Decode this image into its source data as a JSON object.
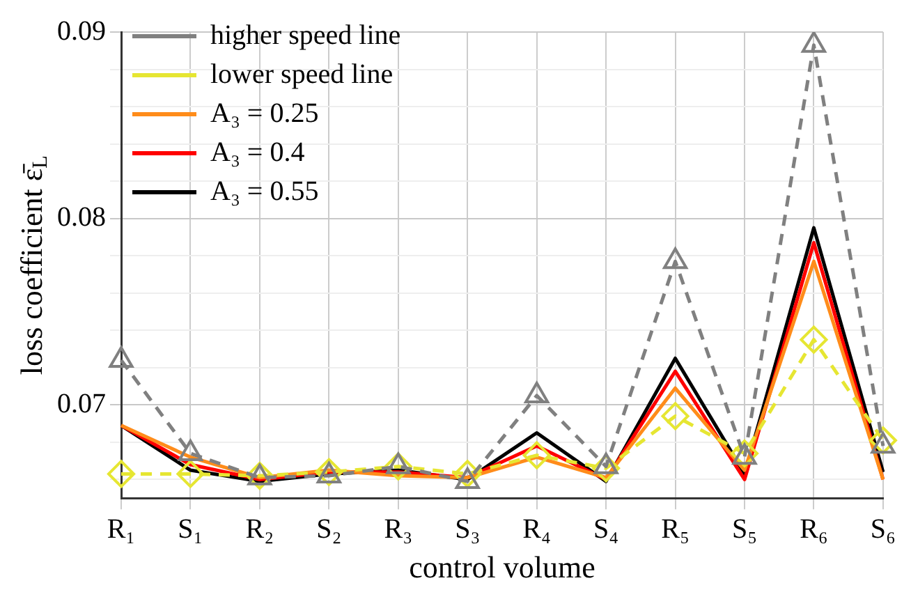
{
  "chart_data": {
    "type": "line",
    "xlabel": "control volume",
    "ylabel": "loss coefficient ε̄$_{L}$",
    "categories": [
      "R₁",
      "S₁",
      "R₂",
      "S₂",
      "R₃",
      "S₃",
      "R₄",
      "S₄",
      "R₅",
      "S₅",
      "R₆",
      "S₆"
    ],
    "ylim": [
      0.065,
      0.09
    ],
    "yticks": [
      {
        "value": 0.066,
        "label": null
      },
      {
        "value": 0.068,
        "label": null
      },
      0.07,
      {
        "value": 0.072,
        "label": null
      },
      {
        "value": 0.074,
        "label": null
      },
      {
        "value": 0.076,
        "label": null
      },
      {
        "value": 0.078,
        "label": null
      },
      0.08,
      {
        "value": 0.082,
        "label": null
      },
      {
        "value": 0.084,
        "label": null
      },
      {
        "value": 0.086,
        "label": null
      },
      {
        "value": 0.088,
        "label": null
      },
      0.09
    ],
    "grid": true,
    "legend": "top left",
    "series": [
      {
        "name": "higher speed line",
        "color": "#808080",
        "marker": "triangle",
        "line_style": "dashed",
        "values": [
          0.0724,
          0.0674,
          0.0661,
          0.0662,
          0.0667,
          0.0659,
          0.0705,
          0.0667,
          0.0777,
          0.0672,
          0.0893,
          0.0678
        ]
      },
      {
        "name": "lower speed line",
        "color": "#e6e632",
        "marker": "diamond",
        "line_style": "dashed",
        "values": [
          0.0663,
          0.0663,
          0.0662,
          0.0664,
          0.0667,
          0.0663,
          0.0673,
          0.0666,
          0.0694,
          0.0674,
          0.0735,
          0.0681
        ]
      },
      {
        "name": "A₃ = 0.25",
        "color": "#ff8c1a",
        "marker": "none",
        "line_style": "solid",
        "values": [
          0.0689,
          0.0672,
          0.0661,
          0.0665,
          0.0662,
          0.0661,
          0.0672,
          0.0661,
          0.0709,
          0.0665,
          0.0777,
          0.066
        ]
      },
      {
        "name": "A₃ = 0.4",
        "color": "#ff0000",
        "marker": "none",
        "line_style": "solid",
        "values": [
          0.0689,
          0.0668,
          0.066,
          0.0664,
          0.0664,
          0.0661,
          0.0678,
          0.066,
          0.0718,
          0.066,
          0.0787,
          0.066
        ]
      },
      {
        "name": "A₃ = 0.55",
        "color": "#000000",
        "marker": "none",
        "line_style": "solid",
        "values": [
          0.0689,
          0.0665,
          0.0659,
          0.0663,
          0.0665,
          0.066,
          0.0685,
          0.0659,
          0.0725,
          0.0663,
          0.0795,
          0.0664
        ]
      }
    ]
  }
}
